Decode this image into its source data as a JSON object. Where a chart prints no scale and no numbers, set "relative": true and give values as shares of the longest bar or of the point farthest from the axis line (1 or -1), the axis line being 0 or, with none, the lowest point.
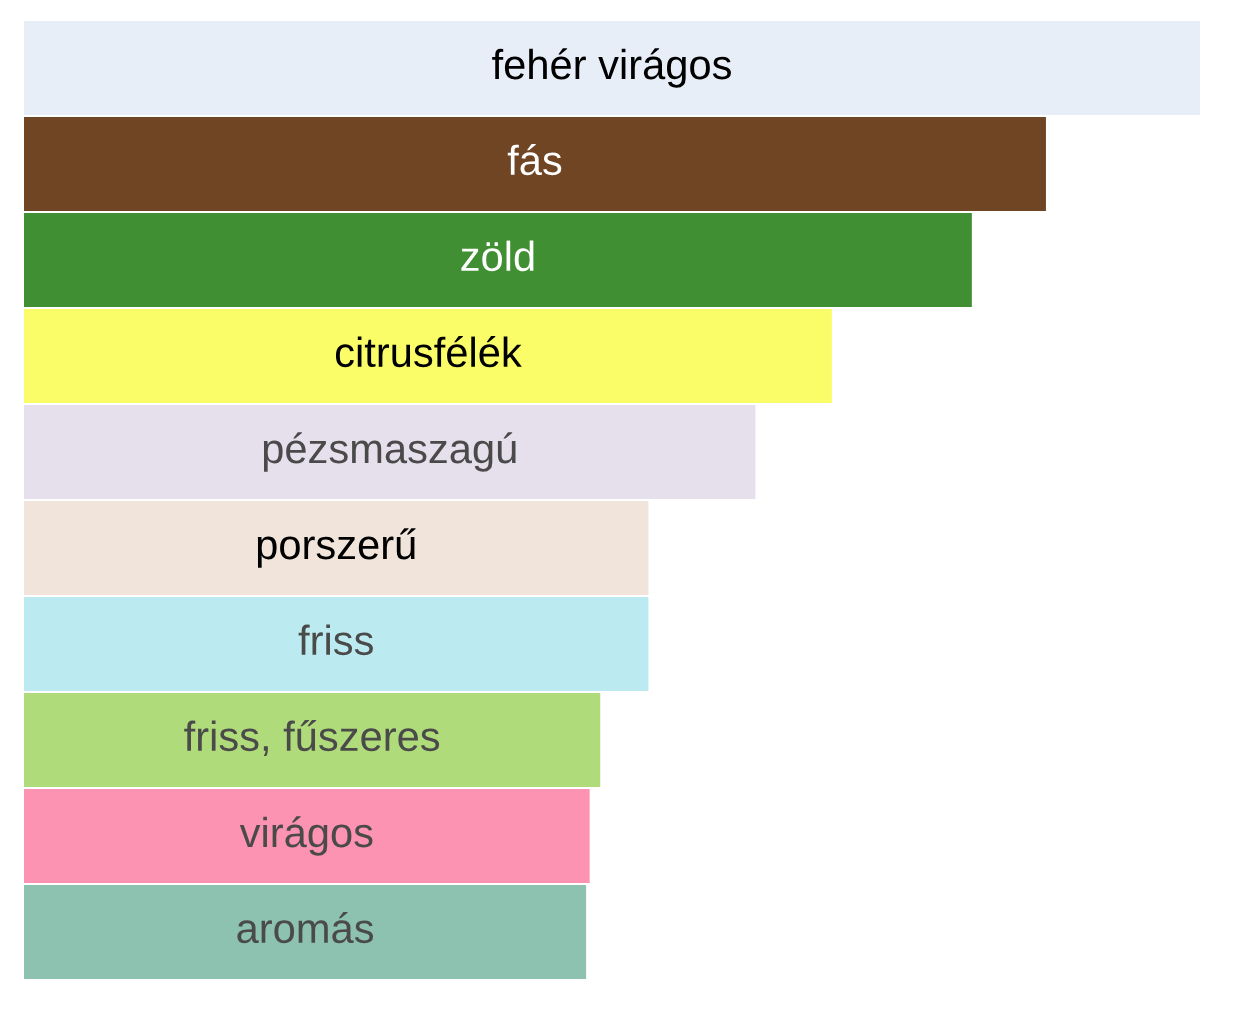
{
  "chart_data": {
    "type": "bar",
    "orientation": "horizontal",
    "relative": true,
    "categories": [
      "fehér virágos",
      "fás",
      "zöld",
      "citrusfélék",
      "pézsmaszagú",
      "porszerű",
      "friss",
      "friss, fűszeres",
      "virágos",
      "aromás"
    ],
    "values": [
      1,
      0.869,
      0.806,
      0.687,
      0.622,
      0.531,
      0.531,
      0.49,
      0.481,
      0.478
    ],
    "colors": [
      "#e8eef8",
      "#6f4524",
      "#409033",
      "#fbfd68",
      "#e6dfec",
      "#f1e4da",
      "#bbebf0",
      "#b0db7b",
      "#fc93b3",
      "#8dc2b0"
    ]
  }
}
